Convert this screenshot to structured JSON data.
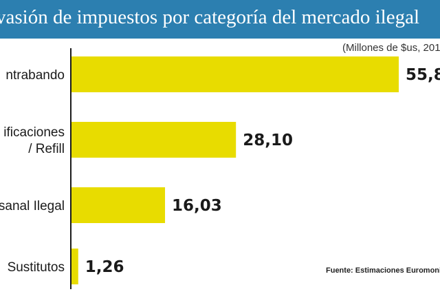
{
  "title": "vasión de impuestos por categoría  del mercado ilegal",
  "subtitle": "(Millones de $us, 201",
  "source": "Fuente: Estimaciones Euromonito",
  "colors": {
    "header": "#2c7fb0",
    "bar": "#e8dc00",
    "axis": "#1a1a1a"
  },
  "chart_data": {
    "type": "bar",
    "orientation": "horizontal",
    "categories": [
      [
        "ntrabando"
      ],
      [
        "ificaciones",
        "/ Refill"
      ],
      [
        "sanal Ilegal"
      ],
      [
        "Sustitutos"
      ]
    ],
    "values": [
      55.8,
      28.1,
      16.03,
      1.26
    ],
    "value_labels": [
      "55,8",
      "28,10",
      "16,03",
      "1,26"
    ],
    "xlim": [
      0,
      58
    ],
    "grid": false
  }
}
